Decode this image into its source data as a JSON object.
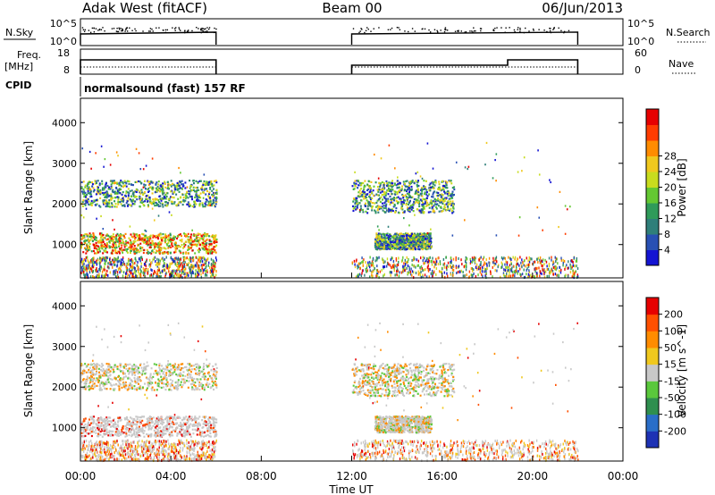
{
  "header": {
    "radar": "Adak West (fitACF)",
    "beam": "Beam 00",
    "date": "06/Jun/2013"
  },
  "panels": {
    "nsky": {
      "label": "N.Sky",
      "ticks": [
        "10^5",
        "10^0"
      ],
      "right_label": "N.Search",
      "right_ticks": [
        "10^5",
        "10^0"
      ]
    },
    "freq": {
      "label_line1": "Freq.",
      "label_line2": "[MHz]",
      "ticks": [
        "18",
        "8"
      ],
      "right_label": "Nave",
      "right_ticks": [
        "60",
        "0"
      ]
    },
    "cpid": {
      "label": "CPID",
      "text": "normalsound (fast) 157 RF"
    }
  },
  "chart_data": [
    {
      "type": "heatmap",
      "name": "power",
      "ylabel": "Slant Range [km]",
      "xlabel": "Time UT",
      "xlim": [
        0,
        24
      ],
      "ylim": [
        180,
        4600
      ],
      "yticks": [
        1000,
        2000,
        3000,
        4000
      ],
      "colorbar": {
        "label": "Power [dB]",
        "ticks": [
          "4",
          "8",
          "12",
          "16",
          "20",
          "24",
          "28"
        ],
        "colors": [
          "#1414d2",
          "#2850b4",
          "#2f7f7a",
          "#2f9b5a",
          "#64c832",
          "#c8dc1e",
          "#f0c81e",
          "#ff8c00",
          "#ff3c00",
          "#e60000"
        ]
      },
      "data_periods_ut": [
        [
          0.0,
          6.0
        ],
        [
          12.0,
          22.0
        ]
      ],
      "echo_bands": [
        {
          "t0": 0.0,
          "t1": 6.0,
          "range_km": [
            800,
            1300
          ],
          "level": "high"
        },
        {
          "t0": 0.0,
          "t1": 6.0,
          "range_km": [
            1950,
            2600
          ],
          "level": "medium"
        },
        {
          "t0": 12.0,
          "t1": 16.5,
          "range_km": [
            1800,
            2600
          ],
          "level": "medium"
        },
        {
          "t0": 13.0,
          "t1": 15.5,
          "range_km": [
            900,
            1300
          ],
          "level": "medium"
        }
      ]
    },
    {
      "type": "heatmap",
      "name": "velocity",
      "ylabel": "Slant Range [km]",
      "xlabel": "Time UT",
      "xlim": [
        0,
        24
      ],
      "ylim": [
        180,
        4600
      ],
      "yticks": [
        1000,
        2000,
        3000,
        4000
      ],
      "colorbar": {
        "label": "Velocity [m s^-1]",
        "ticks": [
          "200",
          "100",
          "50",
          "15",
          "-15",
          "-50",
          "-100",
          "-200"
        ],
        "colors": [
          "#1e32b4",
          "#2a6ec8",
          "#2f8f4f",
          "#5ac83c",
          "#c8c8c8",
          "#f0c81e",
          "#ff8c00",
          "#ff5000",
          "#e60000"
        ]
      }
    }
  ],
  "xaxis": {
    "ticks": [
      "00:00",
      "04:00",
      "08:00",
      "12:00",
      "16:00",
      "20:00",
      "00:00"
    ],
    "label": "Time UT"
  }
}
